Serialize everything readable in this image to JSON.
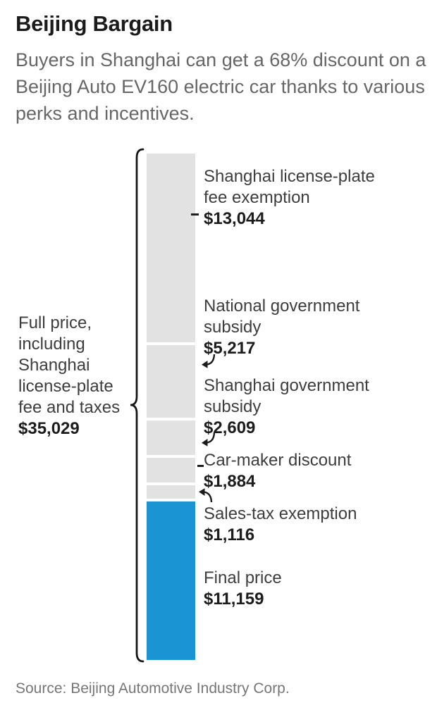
{
  "header": {
    "title": "Beijing Bargain",
    "subtitle": "Buyers in Shanghai can get a 68% discount on a Beijing Auto EV160 electric car thanks to various perks and incentives."
  },
  "chart_data": {
    "type": "bar",
    "variant": "single-stacked-column",
    "orientation": "vertical",
    "title": "Beijing Bargain",
    "unit": "USD",
    "legend": "none",
    "grid": false,
    "full_price": {
      "label": "Full price, including Shanghai license-plate fee and taxes",
      "value": 35029,
      "value_label": "$35,029"
    },
    "segments": [
      {
        "label": "Shanghai license-plate fee exemption",
        "value": 13044,
        "value_label": "$13,044",
        "color": "#e2e2e3"
      },
      {
        "label": "National government subsidy",
        "value": 5217,
        "value_label": "$5,217",
        "color": "#e2e2e3"
      },
      {
        "label": "Shanghai government subsidy",
        "value": 2609,
        "value_label": "$2,609",
        "color": "#e2e2e3"
      },
      {
        "label": "Car-maker discount",
        "value": 1884,
        "value_label": "$1,884",
        "color": "#e2e2e3"
      },
      {
        "label": "Sales-tax exemption",
        "value": 1116,
        "value_label": "$1,116",
        "color": "#e2e2e3"
      },
      {
        "label": "Final price",
        "value": 11159,
        "value_label": "$11,159",
        "color": "#1b94d3"
      }
    ],
    "colors": {
      "segment_gray": "#e2e2e3",
      "accent_blue": "#1b94d3",
      "text_dark": "#1c1c1c",
      "text_label": "#3d3d3d",
      "text_muted": "#666666"
    }
  },
  "source": "Source: Beijing Automotive Industry Corp."
}
